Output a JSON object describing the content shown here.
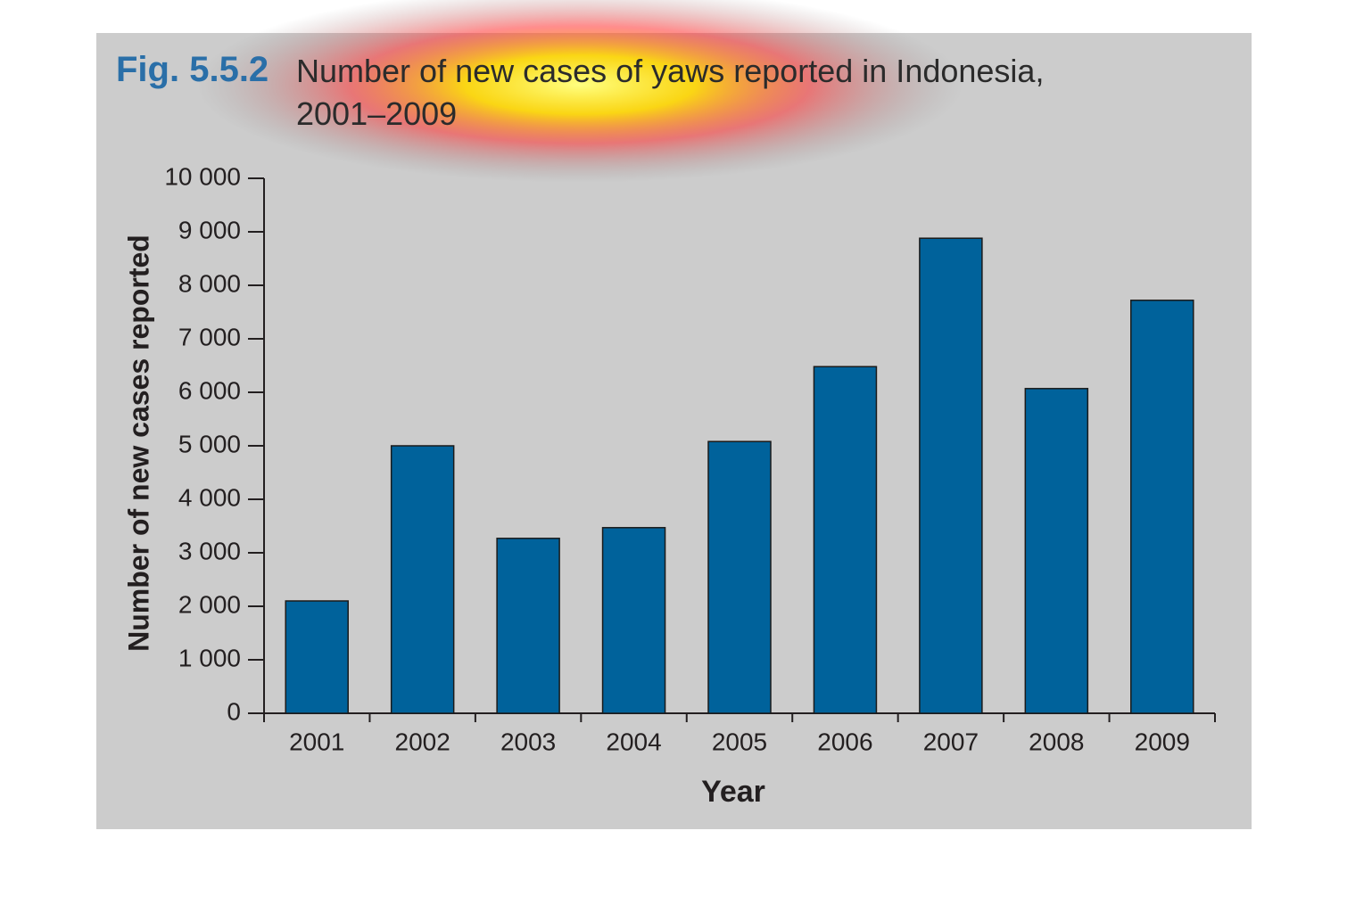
{
  "chart_data": {
    "type": "bar",
    "figure_label": "Fig. 5.5.2",
    "title": "Number of new cases of yaws reported in Indonesia, 2001–2009",
    "x_label": "Year",
    "y_label": "Number of new cases reported",
    "categories": [
      "2001",
      "2002",
      "2003",
      "2004",
      "2005",
      "2006",
      "2007",
      "2008",
      "2009"
    ],
    "values": [
      2100,
      5000,
      3270,
      3470,
      5080,
      6480,
      8880,
      6070,
      7720
    ],
    "color": "#00629b",
    "ylim": [
      0,
      10000
    ],
    "yticks": [
      0,
      {
        "value": 1000,
        "label": "1 000"
      },
      {
        "value": 2000,
        "label": "2 000"
      },
      {
        "value": 3000,
        "label": "3 000"
      },
      {
        "value": 4000,
        "label": "4 000"
      },
      {
        "value": 5000,
        "label": "5 000"
      },
      {
        "value": 6000,
        "label": "6 000"
      },
      {
        "value": 7000,
        "label": "7 000"
      },
      {
        "value": 8000,
        "label": "8 000"
      },
      {
        "value": 9000,
        "label": "9 000"
      },
      {
        "value": 10000,
        "label": "10 000"
      }
    ],
    "grid": false
  }
}
